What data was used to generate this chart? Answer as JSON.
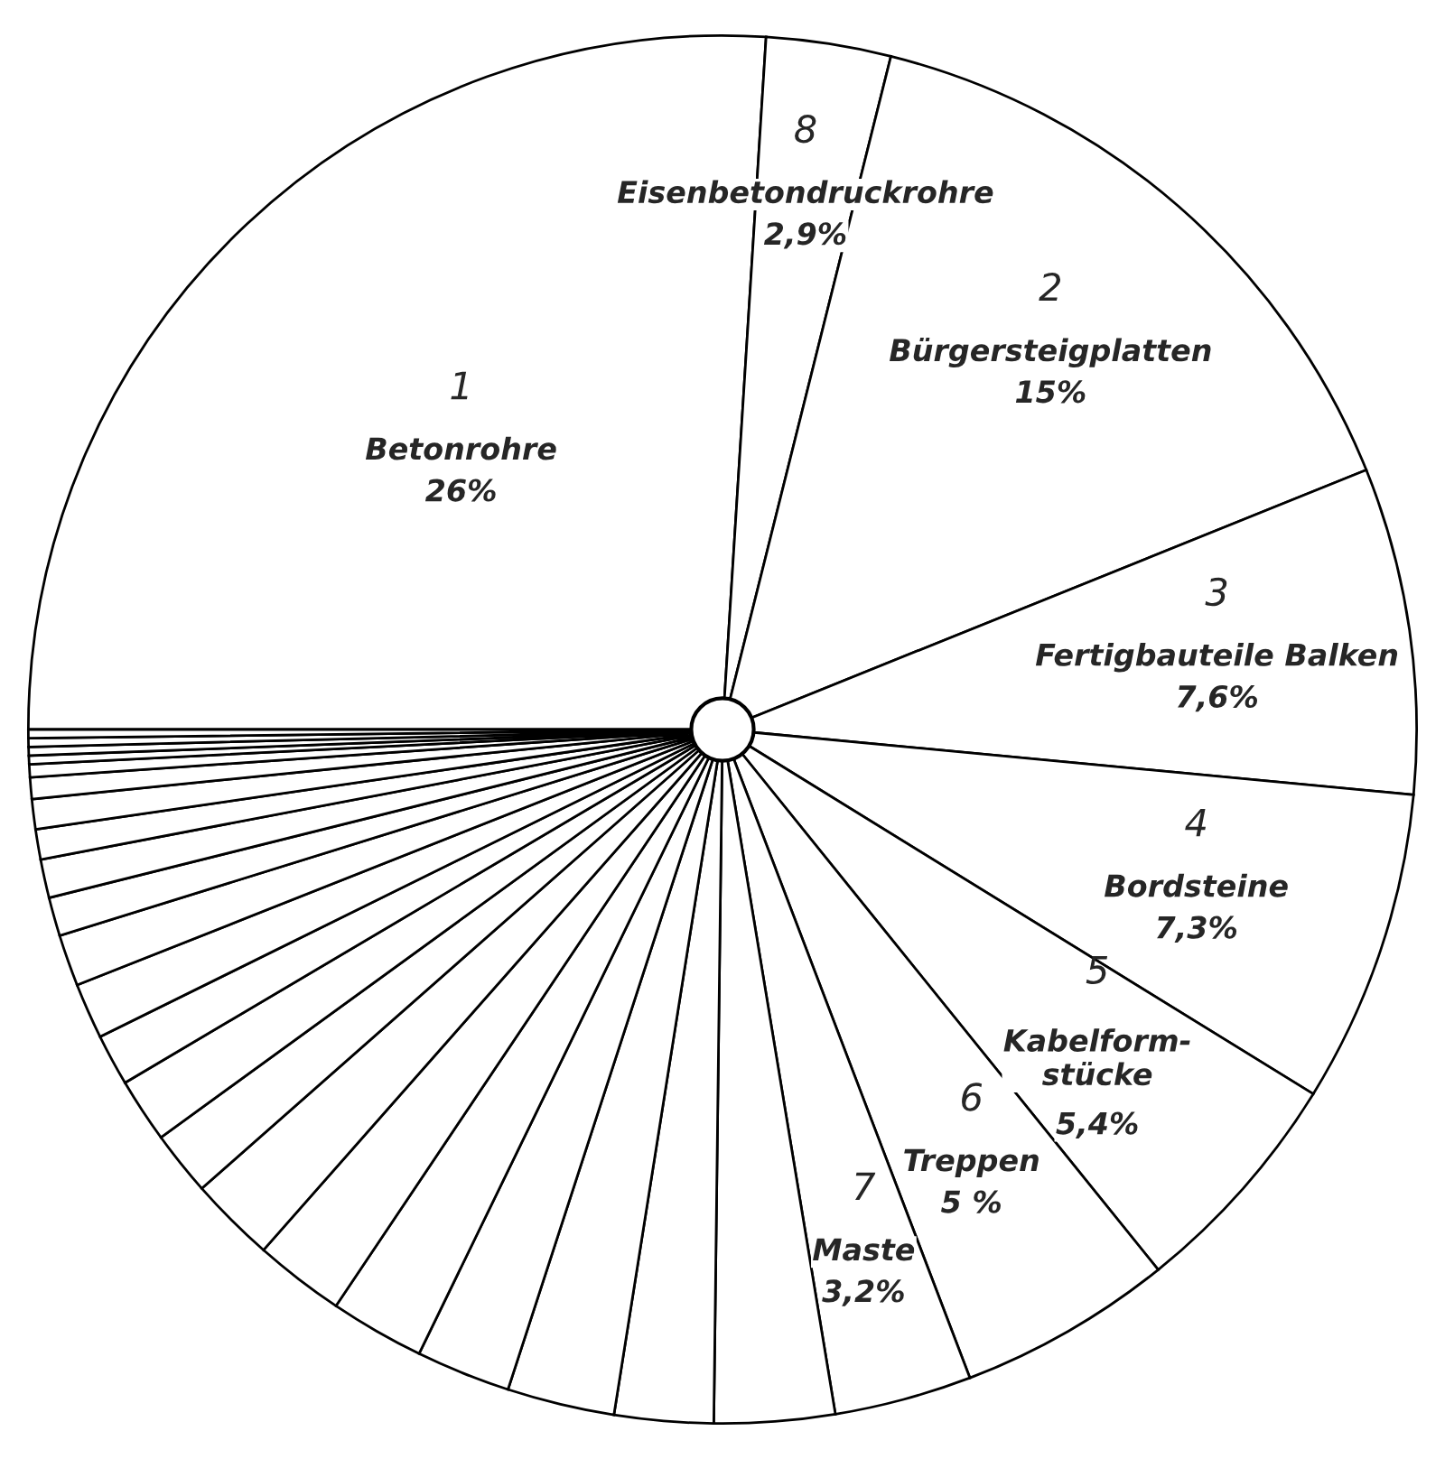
{
  "chart_data": {
    "type": "pie",
    "categories": [
      "Betonrohre",
      "Eisenbetondruckrohre",
      "Bürgersteigplatten",
      "Fertigbauteile Balken",
      "Bordsteine",
      "Kabelform-\nstücke",
      "Treppen",
      "Maste",
      null,
      null,
      null,
      null,
      null,
      null,
      null,
      null,
      null,
      null,
      null,
      null,
      null,
      null,
      null,
      null,
      null,
      null,
      null,
      null,
      null,
      null
    ],
    "values": [
      26,
      2.9,
      15,
      7.6,
      7.3,
      5.4,
      5,
      3.2,
      2.8,
      2.3,
      2.5,
      2.2,
      2.2,
      2.1,
      2.0,
      1.5,
      1.5,
      1.2,
      1.3,
      1.2,
      0.9,
      0.9,
      0.7,
      0.7,
      0.5,
      0.3,
      0.2,
      0.2,
      0.2,
      0.2
    ],
    "value_labels": [
      "26%",
      "2,9%",
      "15%",
      "7,6%",
      "7,3%",
      "5,4%",
      "5 %",
      "3,2%",
      null,
      null,
      null,
      null,
      null,
      null,
      null,
      null,
      null,
      null,
      null,
      null,
      null,
      null,
      null,
      null,
      null,
      null,
      null,
      null,
      null,
      null
    ],
    "colors": [
      "#ffffff",
      "#ffffff",
      "#ffffff",
      "#ffffff",
      "#ffffff",
      "#ffffff",
      "#ffffff",
      "#ffffff",
      "#ffffff",
      "#ffffff",
      "#ffffff",
      "#ffffff",
      "#ffffff",
      "#ffffff",
      "#ffffff",
      "#ffffff",
      "#ffffff",
      "#ffffff",
      "#ffffff",
      "#ffffff",
      "#ffffff",
      "#ffffff",
      "#ffffff",
      "#ffffff",
      "#ffffff",
      "#ffffff",
      "#ffffff",
      "#ffffff",
      "#ffffff",
      "#ffffff"
    ],
    "annotations": [
      {
        "text": "1",
        "x": "Betonrohre"
      },
      {
        "text": "8",
        "x": "Eisenbetondruckrohre"
      },
      {
        "text": "2",
        "x": "Bürgersteigplatten"
      },
      {
        "text": "3",
        "x": "Fertigbauteile Balken"
      },
      {
        "text": "4",
        "x": "Bordsteine"
      },
      {
        "text": "5",
        "x": "Kabelform-\nstücke"
      },
      {
        "text": "6",
        "x": "Treppen"
      },
      {
        "text": "7",
        "x": "Maste"
      }
    ]
  }
}
